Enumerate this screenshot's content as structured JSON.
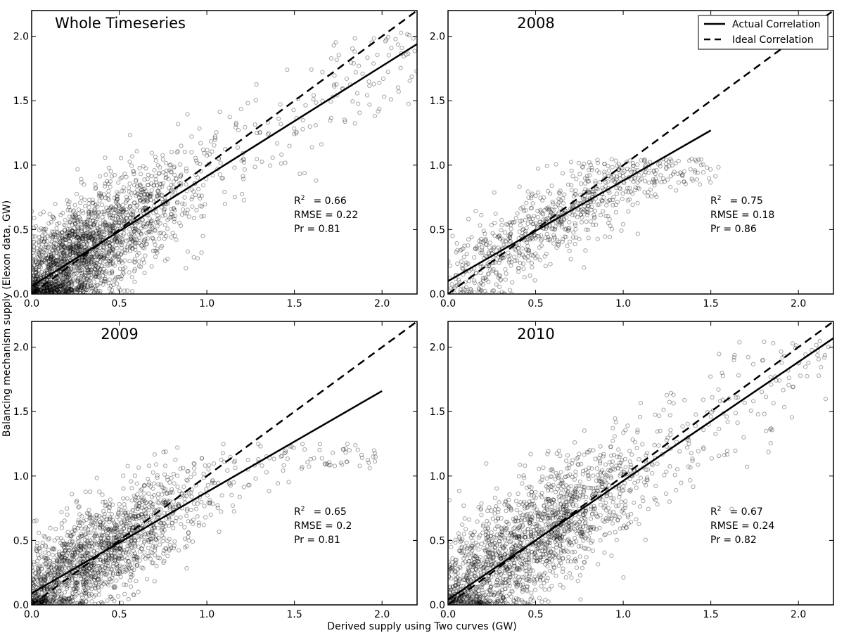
{
  "figure": {
    "xlabel": "Derived supply using Two curves (GW)",
    "ylabel": "Balancing mechanism supply (Elexon data, GW)",
    "legend": {
      "placement": "top-right of 2008 panel",
      "entries": [
        {
          "label": "Actual Correlation",
          "style": "solid"
        },
        {
          "label": "Ideal Correlation",
          "style": "dashed"
        }
      ]
    }
  },
  "chart_data": [
    {
      "type": "scatter",
      "title": "Whole Timeseries",
      "xlim": [
        0,
        2.2
      ],
      "ylim": [
        0,
        2.2
      ],
      "xticks": [
        "0.0",
        "0.5",
        "1.0",
        "1.5",
        "2.0"
      ],
      "yticks": [
        "0.0",
        "0.5",
        "1.0",
        "1.5",
        "2.0"
      ],
      "stats": {
        "r2_label": "R",
        "r2_sup": "2",
        "r2_value": "= 0.66",
        "rmse": "RMSE = 0.22",
        "pr": "Pr = 0.81"
      },
      "actual_line": {
        "x": [
          0,
          2.2
        ],
        "y": [
          0.06,
          1.94
        ]
      },
      "ideal_line": {
        "x": [
          0,
          2.2
        ],
        "y": [
          0,
          2.2
        ]
      },
      "scatter": {
        "n": 2200,
        "x_center": 0.3,
        "x_spread": 0.3,
        "x_max": 2.2,
        "slope": 0.86,
        "intercept": 0.06,
        "noise": 0.22,
        "cap": 2.05
      },
      "marker_color": "#000000"
    },
    {
      "type": "scatter",
      "title": "2008",
      "xlim": [
        0,
        2.2
      ],
      "ylim": [
        0,
        2.2
      ],
      "xticks": [
        "0.0",
        "0.5",
        "1.0",
        "1.5",
        "2.0"
      ],
      "yticks": [
        "0.0",
        "0.5",
        "1.0",
        "1.5",
        "2.0"
      ],
      "stats": {
        "r2_label": "R",
        "r2_sup": "2",
        "r2_value": "= 0.75",
        "rmse": "RMSE = 0.18",
        "pr": "Pr = 0.86"
      },
      "actual_line": {
        "x": [
          0,
          1.5
        ],
        "y": [
          0.1,
          1.27
        ]
      },
      "ideal_line": {
        "x": [
          0,
          2.2
        ],
        "y": [
          0,
          2.2
        ]
      },
      "scatter": {
        "n": 800,
        "x_center": 0.6,
        "x_spread": 0.35,
        "x_max": 1.55,
        "slope": 0.78,
        "intercept": 0.1,
        "noise": 0.17,
        "cap": 1.05
      },
      "marker_color": "#000000"
    },
    {
      "type": "scatter",
      "title": "2009",
      "xlim": [
        0,
        2.2
      ],
      "ylim": [
        0,
        2.2
      ],
      "xticks": [
        "0.0",
        "0.5",
        "1.0",
        "1.5",
        "2.0"
      ],
      "yticks": [
        "0.0",
        "0.5",
        "1.0",
        "1.5",
        "2.0"
      ],
      "stats": {
        "r2_label": "R",
        "r2_sup": "2",
        "r2_value": "= 0.65",
        "rmse": "RMSE = 0.2",
        "pr": "Pr = 0.81"
      },
      "actual_line": {
        "x": [
          0,
          2.0
        ],
        "y": [
          0.09,
          1.66
        ]
      },
      "ideal_line": {
        "x": [
          0,
          2.2
        ],
        "y": [
          0,
          2.2
        ]
      },
      "scatter": {
        "n": 1700,
        "x_center": 0.35,
        "x_spread": 0.3,
        "x_max": 2.0,
        "slope": 0.79,
        "intercept": 0.09,
        "noise": 0.2,
        "cap": 1.25
      },
      "marker_color": "#000000"
    },
    {
      "type": "scatter",
      "title": "2010",
      "xlim": [
        0,
        2.2
      ],
      "ylim": [
        0,
        2.2
      ],
      "xticks": [
        "0.0",
        "0.5",
        "1.0",
        "1.5",
        "2.0"
      ],
      "yticks": [
        "0.0",
        "0.5",
        "1.0",
        "1.5",
        "2.0"
      ],
      "stats": {
        "r2_label": "R",
        "r2_sup": "2",
        "r2_value": "= 0.67",
        "rmse": "RMSE = 0.24",
        "pr": "Pr = 0.82"
      },
      "actual_line": {
        "x": [
          0,
          2.2
        ],
        "y": [
          0.04,
          2.07
        ]
      },
      "ideal_line": {
        "x": [
          0,
          2.2
        ],
        "y": [
          0,
          2.2
        ]
      },
      "scatter": {
        "n": 1900,
        "x_center": 0.45,
        "x_spread": 0.38,
        "x_max": 2.2,
        "slope": 0.92,
        "intercept": 0.04,
        "noise": 0.24,
        "cap": 2.05
      },
      "marker_color": "#000000"
    }
  ]
}
